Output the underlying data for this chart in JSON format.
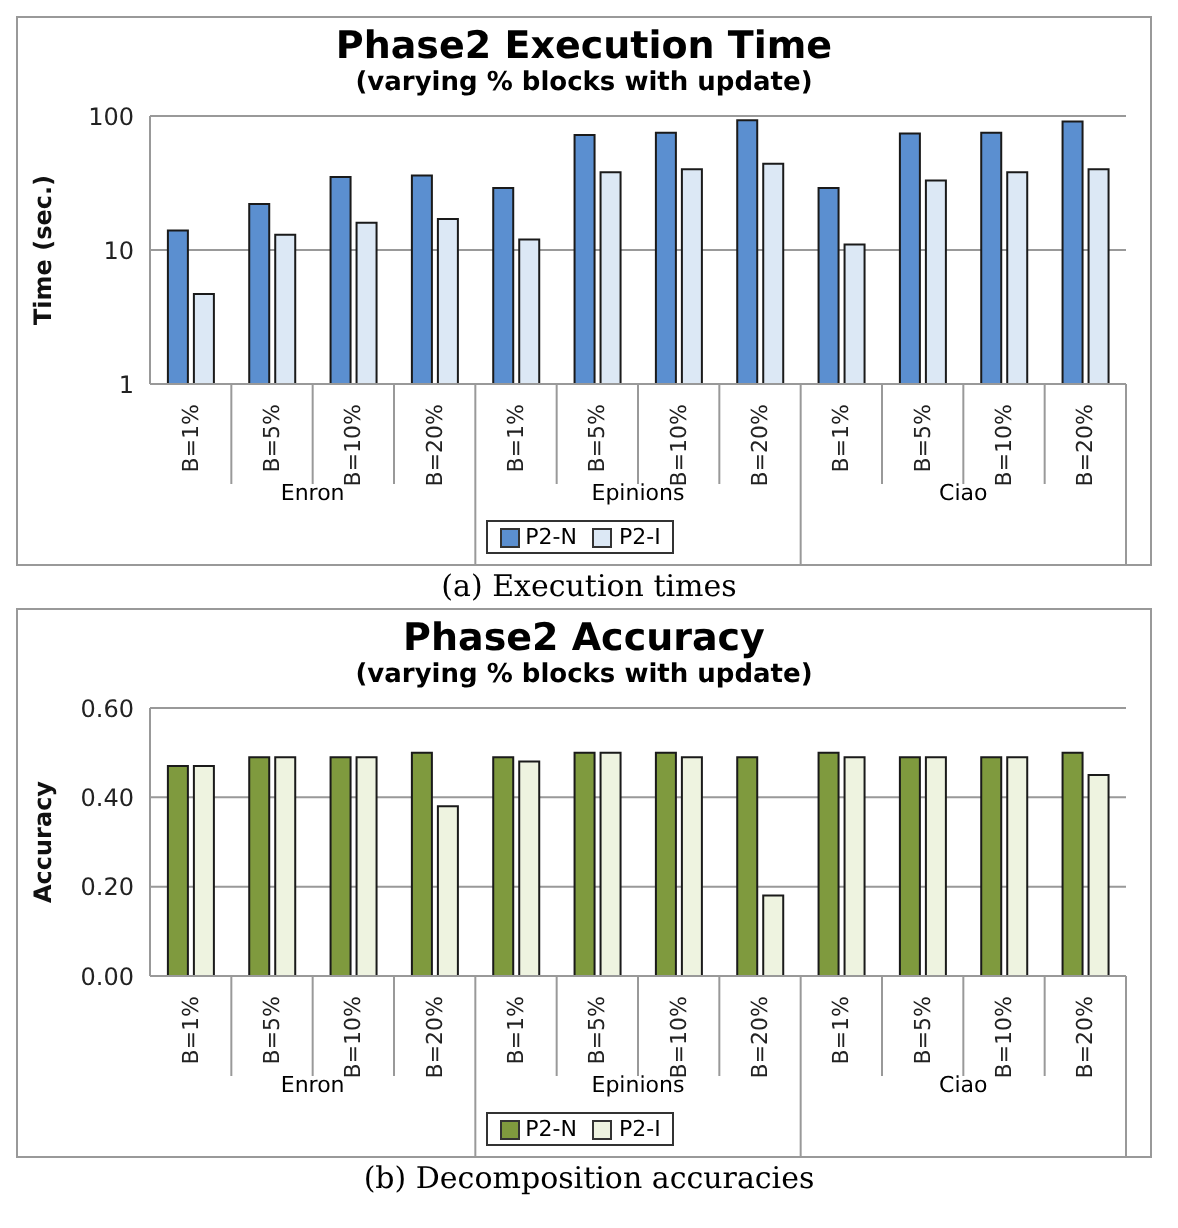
{
  "chart_data": [
    {
      "type": "bar",
      "title": "Phase2 Execution Time",
      "subtitle": "(varying % blocks with update)",
      "ylabel": "Time (sec.)",
      "categories": [
        "B=1%",
        "B=5%",
        "B=10%",
        "B=20%",
        "B=1%",
        "B=5%",
        "B=10%",
        "B=20%",
        "B=1%",
        "B=5%",
        "B=10%",
        "B=20%"
      ],
      "series": [
        {
          "name": "P2-N",
          "color": "#5b8fd0",
          "values": [
            14,
            22,
            35,
            36,
            29,
            72,
            75,
            93,
            29,
            74,
            75,
            91
          ]
        },
        {
          "name": "P2-I",
          "color": "#dce8f5",
          "values": [
            4.7,
            13,
            16,
            17,
            12,
            38,
            40,
            44,
            11,
            33,
            38,
            40
          ]
        }
      ],
      "log": true,
      "ylim": [
        1,
        100
      ],
      "yticks": [
        1,
        10,
        100
      ],
      "grid": "y",
      "legend": "bottom",
      "annotations": [
        "Enron",
        "Epinions",
        "Ciao",
        "(a) Execution times"
      ]
    },
    {
      "type": "bar",
      "title": "Phase2 Accuracy",
      "subtitle": "(varying % blocks with update)",
      "ylabel": "Accuracy",
      "categories": [
        "B=1%",
        "B=5%",
        "B=10%",
        "B=20%",
        "B=1%",
        "B=5%",
        "B=10%",
        "B=20%",
        "B=1%",
        "B=5%",
        "B=10%",
        "B=20%"
      ],
      "series": [
        {
          "name": "P2-N",
          "color": "#7f9a3e",
          "values": [
            0.47,
            0.49,
            0.49,
            0.5,
            0.49,
            0.5,
            0.5,
            0.49,
            0.5,
            0.49,
            0.49,
            0.5
          ]
        },
        {
          "name": "P2-I",
          "color": "#eef3e0",
          "values": [
            0.47,
            0.49,
            0.49,
            0.38,
            0.48,
            0.5,
            0.49,
            0.18,
            0.49,
            0.49,
            0.49,
            0.45
          ]
        }
      ],
      "ylim": [
        0,
        0.6
      ],
      "yticks": [
        {
          "value": 0,
          "label": "0.00"
        },
        {
          "value": 0.2,
          "label": "0.20"
        },
        {
          "value": 0.4,
          "label": "0.40"
        },
        {
          "value": 0.6,
          "label": "0.60"
        }
      ],
      "grid": "y",
      "legend": "bottom",
      "annotations": [
        "Enron",
        "Epinions",
        "Ciao",
        "(b) Decomposition accuracies"
      ]
    }
  ]
}
